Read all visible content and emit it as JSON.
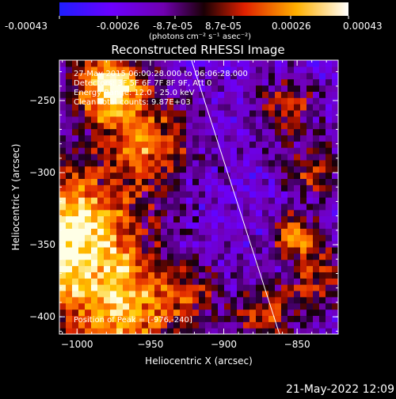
{
  "colors": {
    "background": "#000000",
    "text": "#ffffff",
    "limb_line": "#ffffff"
  },
  "colorbar": {
    "tick_labels": [
      "-0.00043",
      "-0.00026",
      "-8.7e-05",
      "8.7e-05",
      "0.00026",
      "0.00043"
    ],
    "unit_label": "(photons cm⁻² s⁻¹ asec⁻²)",
    "range": [
      -0.00043,
      0.00043
    ],
    "colormap": "rhessi-diverging (blue-white-black-red-yellow-white)"
  },
  "footer_timestamp": "21-May-2022 12:09",
  "chart_data": {
    "type": "heatmap",
    "title": "Reconstructed RHESSI Image",
    "xlabel": "Heliocentric X (arcsec)",
    "ylabel": "Heliocentric Y (arcsec)",
    "xlim": [
      -1012,
      -822
    ],
    "ylim": [
      -412,
      -222
    ],
    "x_ticks": [
      -1000,
      -950,
      -900,
      -850
    ],
    "y_ticks": [
      -400,
      -350,
      -300,
      -250
    ],
    "x_tick_labels": [
      "−1000",
      "−950",
      "−900",
      "−850"
    ],
    "y_tick_labels": [
      "−400",
      "−350",
      "−300",
      "−250"
    ],
    "annotations": [
      "27-May-2015 06:00:28.000 to 06:06:28.000",
      "Detectors: 3F 5F 6F 7F 8F 9F, Att 0",
      "Energy Range: 12.0 - 25.0 keV",
      "Clean    Total counts: 9.87E+03"
    ],
    "peak_label": "Position of Peak = [-976,-240]",
    "peak": [
      -976,
      -240
    ],
    "limb_line": [
      [
        -922,
        -222
      ],
      [
        -862,
        -412
      ]
    ],
    "sources": [
      {
        "x": -1005,
        "y": -348,
        "amp": 1.0,
        "sigma": 34
      },
      {
        "x": -978,
        "y": -241,
        "amp": 0.9,
        "sigma": 18
      },
      {
        "x": -950,
        "y": -280,
        "amp": 0.55,
        "sigma": 20
      },
      {
        "x": -968,
        "y": -400,
        "amp": 0.6,
        "sigma": 22
      },
      {
        "x": -925,
        "y": -385,
        "amp": 0.4,
        "sigma": 16
      },
      {
        "x": -852,
        "y": -342,
        "amp": 0.65,
        "sigma": 10
      },
      {
        "x": -835,
        "y": -370,
        "amp": 0.5,
        "sigma": 14
      },
      {
        "x": -858,
        "y": -255,
        "amp": 0.45,
        "sigma": 14
      },
      {
        "x": -838,
        "y": -300,
        "amp": 0.4,
        "sigma": 13
      },
      {
        "x": -870,
        "y": -400,
        "amp": 0.45,
        "sigma": 16
      }
    ]
  }
}
